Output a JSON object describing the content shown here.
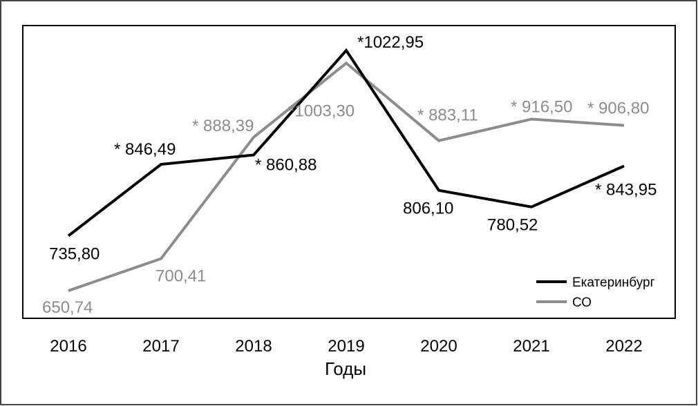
{
  "chart_data": {
    "type": "line",
    "title": "",
    "xlabel": "Годы",
    "ylabel": "",
    "x": [
      "2016",
      "2017",
      "2018",
      "2019",
      "2020",
      "2021",
      "2022"
    ],
    "ylim": [
      600,
      1050
    ],
    "grid": false,
    "legend_position": "bottom-right",
    "series": [
      {
        "name": "Екатеринбург",
        "color": "#000000",
        "values": [
          735.8,
          846.49,
          860.88,
          1022.95,
          806.1,
          780.52,
          843.95
        ],
        "labels": [
          "735,80",
          "* 846,49",
          "* 860,88",
          "*1022,95",
          "806,10",
          "780,52",
          "* 843,95"
        ]
      },
      {
        "name": "СО",
        "color": "#8c8c8c",
        "values": [
          650.74,
          700.41,
          888.39,
          1003.3,
          883.11,
          916.5,
          906.8
        ],
        "labels": [
          "650,74",
          "700,41",
          "* 888,39",
          "*1003,30",
          "* 883,11",
          "* 916,50",
          "* 906,80"
        ]
      }
    ]
  }
}
